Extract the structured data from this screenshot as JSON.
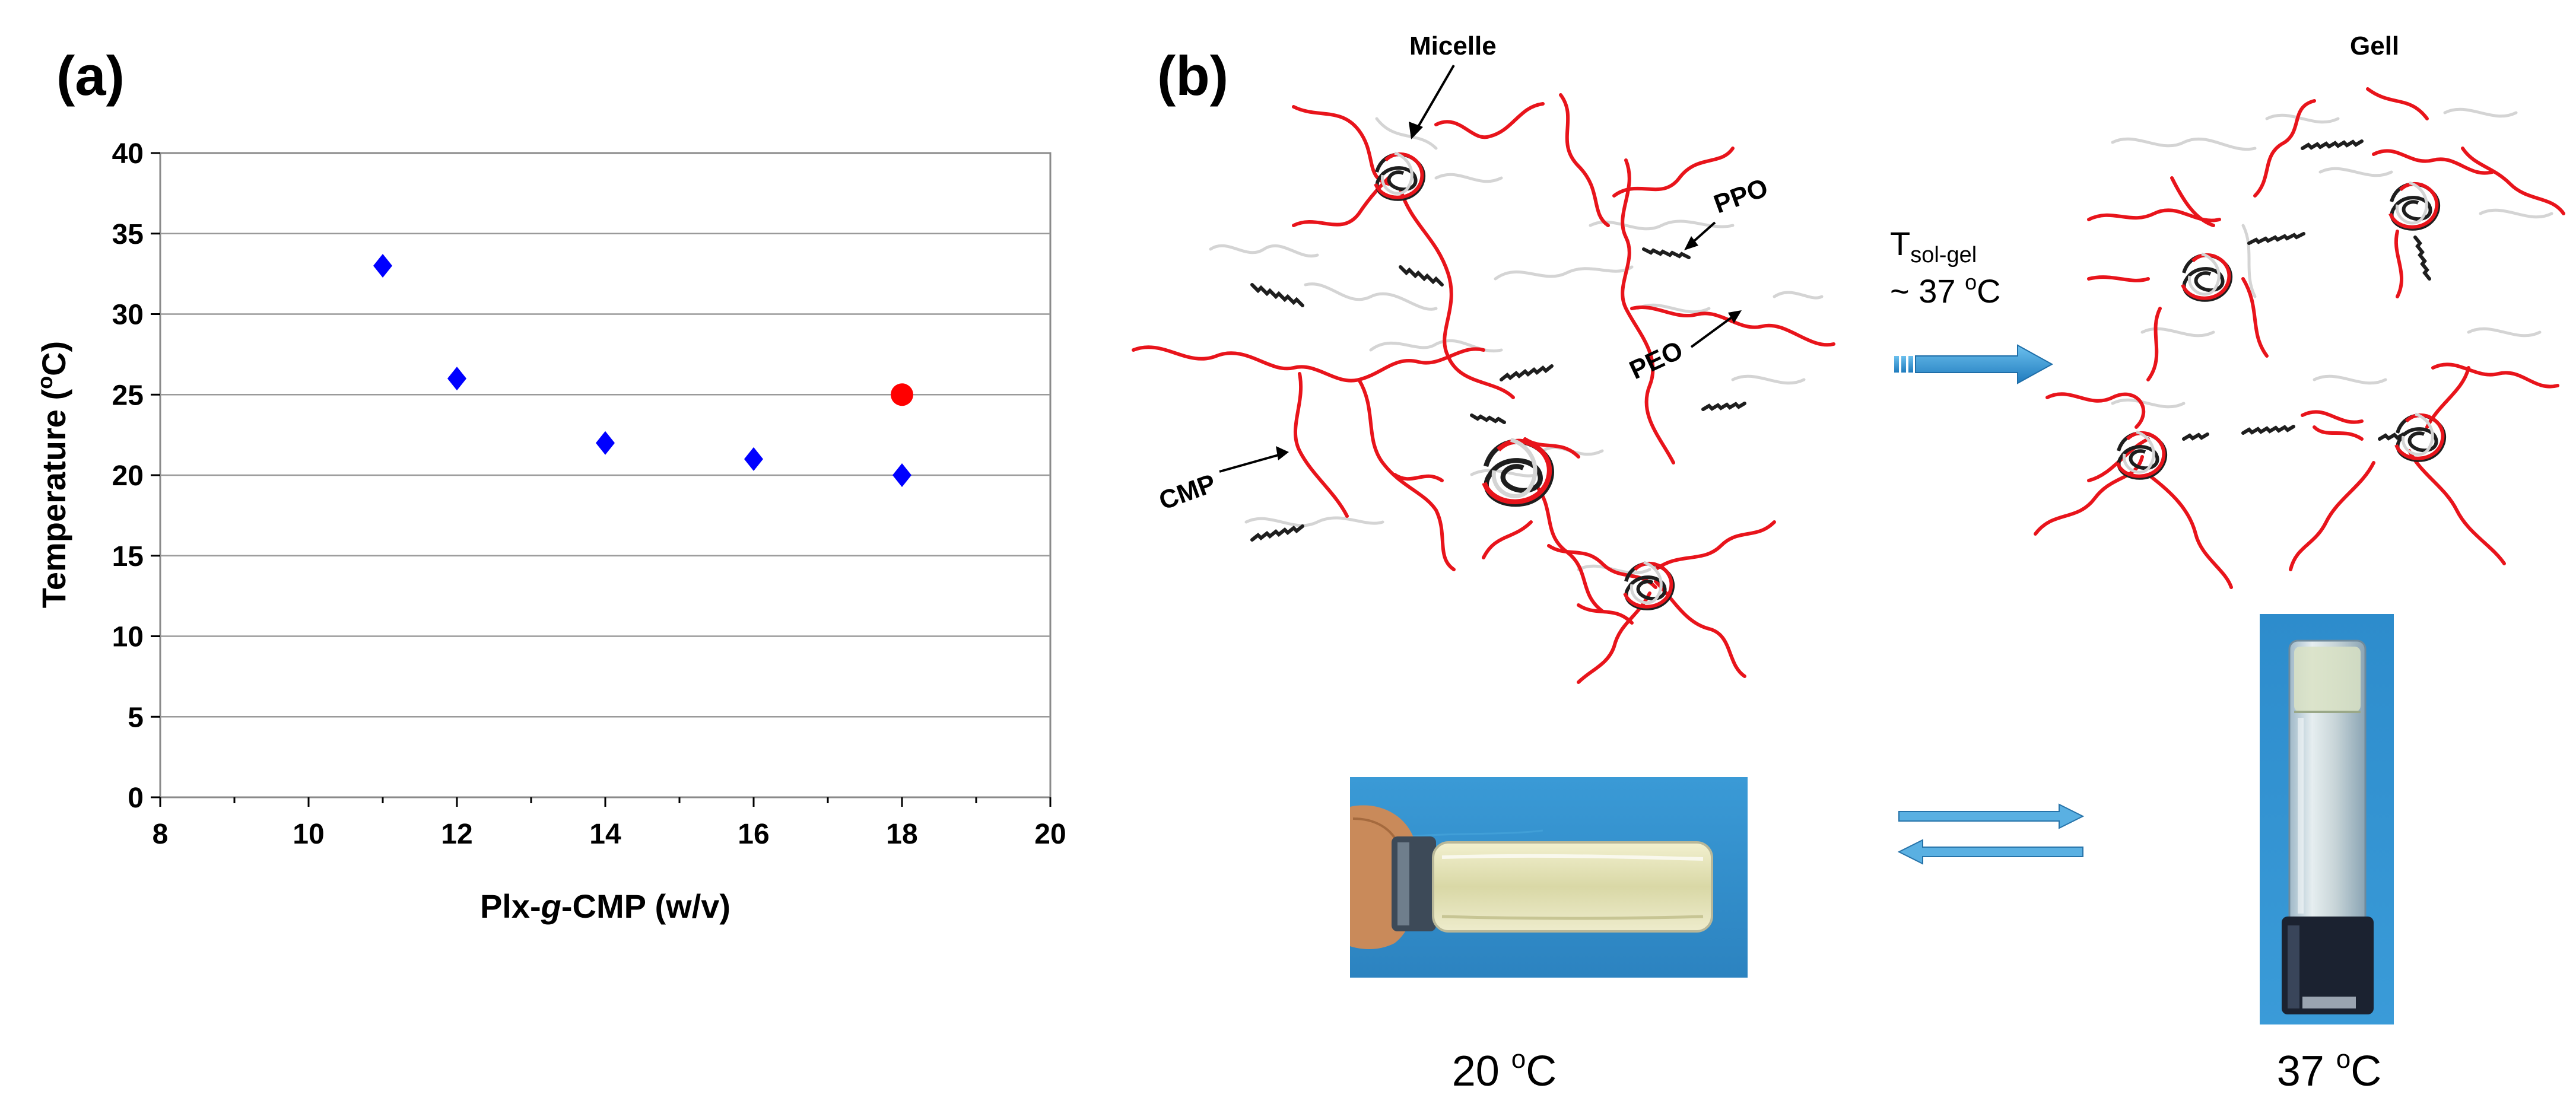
{
  "panel_a": {
    "label": "(a)",
    "chart_data": {
      "type": "scatter",
      "title": "",
      "xlabel": "Plx-g-CMP (w/v)",
      "xlabel_parts": [
        "Plx-",
        "g",
        "-CMP (w/v)"
      ],
      "ylabel": "Temperature (oC)",
      "ylabel_parts": [
        "Temperature (",
        "o",
        "C)"
      ],
      "xlim": [
        8,
        20
      ],
      "ylim": [
        0,
        40
      ],
      "x_ticks": [
        8,
        10,
        12,
        14,
        16,
        18,
        20
      ],
      "y_ticks": [
        0,
        5,
        10,
        15,
        20,
        25,
        30,
        35,
        40
      ],
      "grid": "horizontal",
      "series": [
        {
          "marker": "diamond",
          "color": "#0000ff",
          "x": [
            11,
            12,
            14,
            16,
            18
          ],
          "y": [
            33,
            26,
            22,
            21,
            20
          ]
        },
        {
          "marker": "circle",
          "color": "#ff0000",
          "x": [
            18
          ],
          "y": [
            25
          ]
        }
      ]
    }
  },
  "panel_b": {
    "label": "(b)",
    "micelle_label": "Micelle",
    "gel_label": "Gell",
    "ppo_label": "PPO",
    "peo_label": "PEO",
    "cmp_label": "CMP",
    "transition_main": "T",
    "transition_sub": "sol-gel",
    "transition_temp": "~ 37 oC",
    "transition_temp_parts": [
      "~ 37 ",
      "o",
      "C"
    ],
    "photo_left_caption": "20 oC",
    "photo_left_caption_parts": [
      "20 ",
      "o",
      "C"
    ],
    "photo_right_caption": "37 oC",
    "photo_right_caption_parts": [
      "37 ",
      "o",
      "C"
    ],
    "colors": {
      "cmp_chain": "#e8141b",
      "peo_chain": "#d4d4d4",
      "ppo_chain": "#1e1e1e",
      "arrow": "#3a9ad9",
      "photo_bg": "#2e8fcc"
    }
  }
}
